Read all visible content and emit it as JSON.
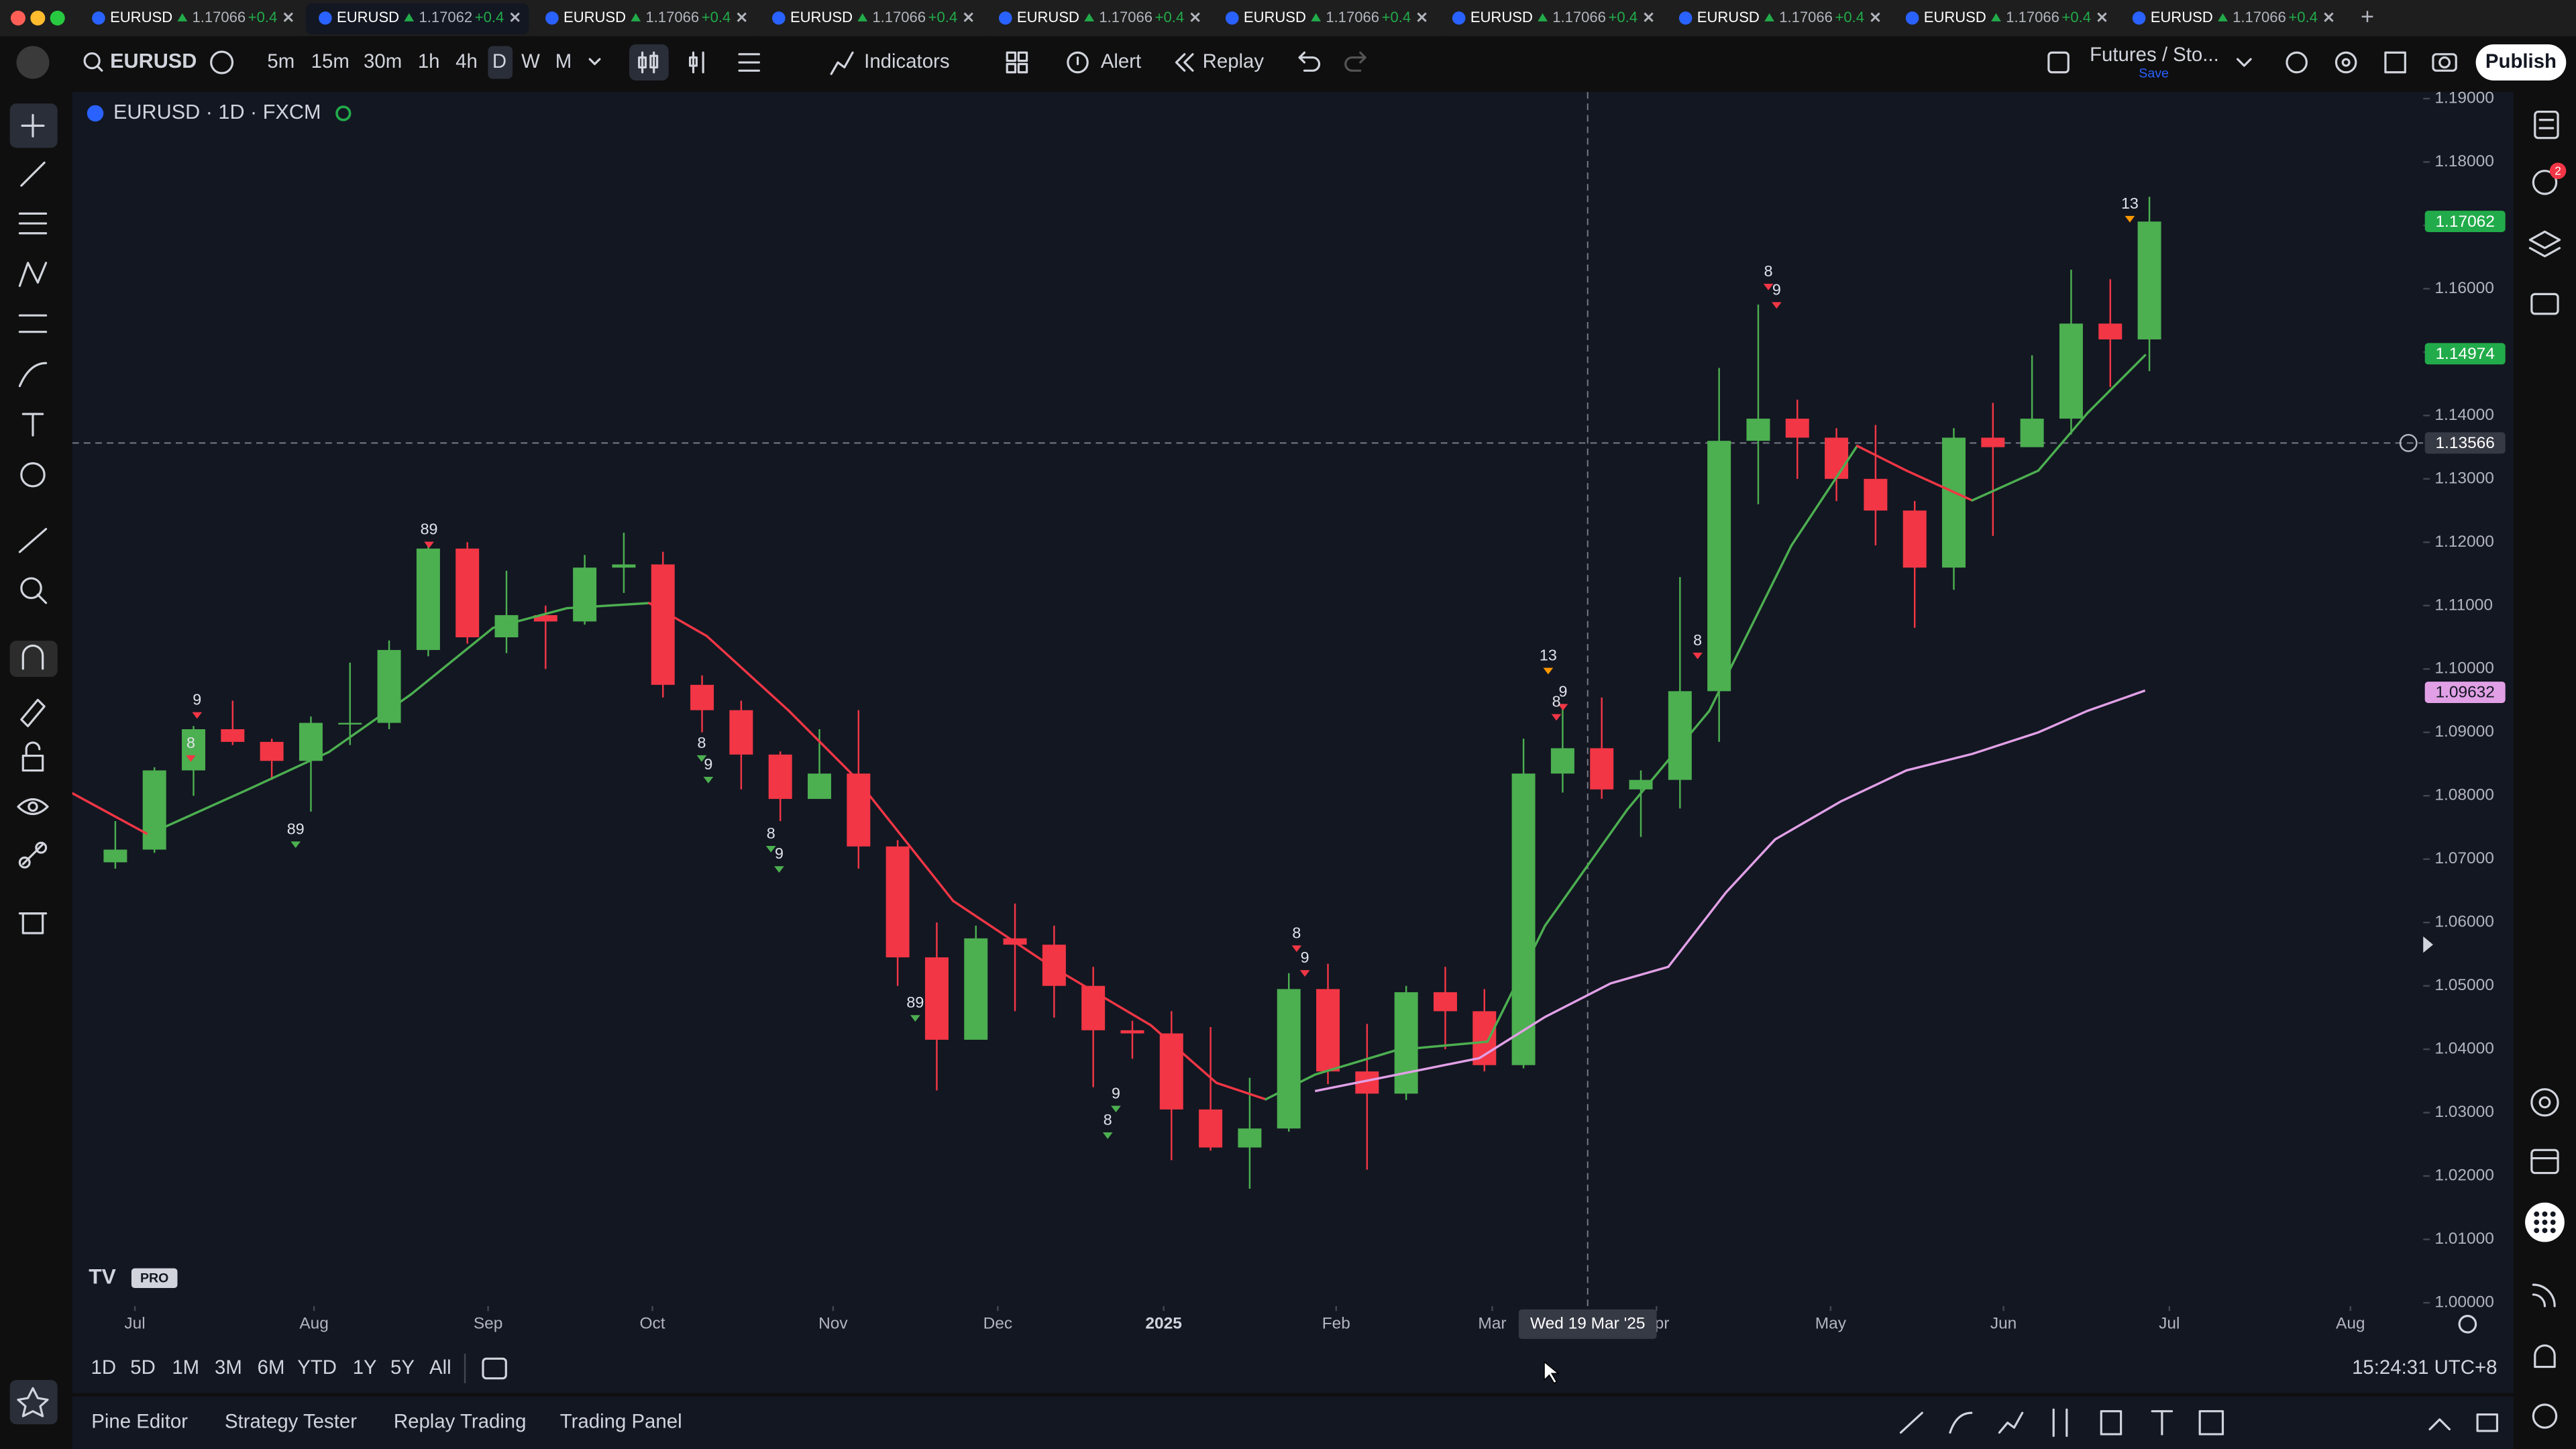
{
  "chart_data": {
    "type": "candlestick",
    "legend": "EURUSD · 1D · FXCM",
    "x": [
      0,
      1,
      2,
      3,
      4,
      5,
      6,
      7,
      8,
      9,
      10,
      11,
      12,
      13,
      14,
      15,
      16,
      17,
      18,
      19,
      20,
      21,
      22,
      23,
      24,
      25,
      26,
      27,
      28,
      29,
      30,
      31,
      32,
      33,
      34,
      35,
      36,
      37,
      38,
      39,
      40,
      41,
      42,
      43,
      44,
      45,
      46,
      47,
      48,
      49,
      50,
      51,
      52
    ],
    "open": [
      1.0695,
      1.0715,
      1.084,
      1.0905,
      1.0885,
      1.0855,
      1.0915,
      1.0915,
      1.103,
      1.119,
      1.105,
      1.1085,
      1.1075,
      1.116,
      1.1165,
      1.0975,
      1.0935,
      1.0865,
      1.0795,
      1.0835,
      1.072,
      1.0545,
      1.0415,
      1.0575,
      1.0565,
      1.05,
      1.043,
      1.0425,
      1.0305,
      1.0245,
      1.0275,
      1.0495,
      1.0365,
      1.033,
      1.049,
      1.046,
      1.0375,
      1.0835,
      1.0875,
      1.081,
      1.0825,
      1.0965,
      1.136,
      1.1395,
      1.1365,
      1.13,
      1.125,
      1.116,
      1.1365,
      1.135,
      1.1395,
      1.1545,
      1.152
    ],
    "high": [
      1.076,
      1.0845,
      1.091,
      1.095,
      1.089,
      1.0925,
      1.101,
      1.1045,
      1.12,
      1.12,
      1.1155,
      1.11,
      1.118,
      1.1215,
      1.1185,
      1.099,
      1.095,
      1.087,
      1.0905,
      1.0935,
      1.073,
      1.06,
      1.0595,
      1.063,
      1.0595,
      1.053,
      1.0445,
      1.046,
      1.0435,
      1.0355,
      1.052,
      1.0535,
      1.044,
      1.05,
      1.053,
      1.0495,
      1.089,
      1.0945,
      1.0955,
      1.084,
      1.1145,
      1.1475,
      1.1575,
      1.1425,
      1.138,
      1.1385,
      1.1265,
      1.138,
      1.142,
      1.1495,
      1.163,
      1.1615,
      1.1745
    ],
    "low": [
      1.0685,
      1.071,
      1.08,
      1.088,
      1.0825,
      1.0775,
      1.088,
      1.0905,
      1.102,
      1.104,
      1.1025,
      1.1,
      1.107,
      1.112,
      1.0955,
      1.09,
      1.081,
      1.076,
      1.0795,
      1.0685,
      1.05,
      1.0335,
      1.0425,
      1.046,
      1.045,
      1.034,
      1.0385,
      1.0225,
      1.024,
      1.018,
      1.027,
      1.0345,
      1.021,
      1.032,
      1.04,
      1.0365,
      1.037,
      1.0805,
      1.0795,
      1.0735,
      1.078,
      1.0885,
      1.126,
      1.13,
      1.1265,
      1.1195,
      1.1065,
      1.1125,
      1.121,
      1.135,
      1.137,
      1.1445,
      1.147
    ],
    "close": [
      1.0715,
      1.084,
      1.0905,
      1.0885,
      1.0855,
      1.0915,
      1.0915,
      1.103,
      1.119,
      1.105,
      1.1085,
      1.1075,
      1.116,
      1.1165,
      1.0975,
      1.0935,
      1.0865,
      1.0795,
      1.0835,
      1.072,
      1.0545,
      1.0415,
      1.0575,
      1.0565,
      1.05,
      1.043,
      1.0425,
      1.0305,
      1.0245,
      1.0275,
      1.0495,
      1.0365,
      1.033,
      1.049,
      1.046,
      1.0375,
      1.0835,
      1.0875,
      1.081,
      1.0825,
      1.0965,
      1.136,
      1.1395,
      1.1365,
      1.13,
      1.125,
      1.116,
      1.1365,
      1.135,
      1.1395,
      1.1545,
      1.152,
      1.1706
    ],
    "up_color": "#4caf50",
    "down_color": "#f23645",
    "series": [
      {
        "x": [
          -1.1,
          0.84,
          3.36,
          5.46,
          7.56,
          9.66,
          11.55,
          13.65,
          15.12,
          17.22,
          18.9,
          21.42,
          23.95,
          26.47,
          28.15,
          29.41,
          30.67,
          32.77,
          35.08,
          36.55,
          38.65,
          40.75,
          42.85,
          44.53,
          45.79,
          47.47,
          49.16,
          50.42,
          51.89
        ],
        "values": [
          1.0804,
          1.0739,
          1.0809,
          1.0869,
          1.096,
          1.1065,
          1.1096,
          1.1104,
          1.1052,
          1.0934,
          1.083,
          1.0634,
          1.053,
          1.0438,
          1.0347,
          1.0321,
          1.036,
          1.0399,
          1.0412,
          1.0595,
          1.0778,
          1.0934,
          1.1195,
          1.1352,
          1.1313,
          1.1266,
          1.1313,
          1.1404,
          1.1495
        ],
        "up_color": "#4caf50",
        "down_color": "#f23645"
      },
      {
        "x": [
          30.67,
          32.77,
          34.87,
          36.55,
          38.23,
          39.7,
          41.17,
          42.43,
          44.11,
          45.79,
          47.47,
          49.16,
          50.42,
          51.89
        ],
        "values": [
          1.0334,
          1.036,
          1.0386,
          1.0451,
          1.0504,
          1.053,
          1.0647,
          1.0731,
          1.0791,
          1.084,
          1.0866,
          1.09,
          1.0934,
          1.0966
        ],
        "color": "#e1a0e6"
      }
    ],
    "annotations": [
      {
        "text": "9",
        "x": 2.09,
        "y": 1.095,
        "color": "#f23645"
      },
      {
        "text": "8",
        "x": 1.93,
        "y": 1.0882,
        "color": "#f23645"
      },
      {
        "text": "89",
        "x": 4.61,
        "y": 1.0746,
        "color": "#4caf50"
      },
      {
        "text": "89",
        "x": 8.02,
        "y": 1.1219,
        "color": "#f23645"
      },
      {
        "text": "8",
        "x": 14.99,
        "y": 1.0882,
        "color": "#4caf50"
      },
      {
        "text": "9",
        "x": 15.16,
        "y": 1.0848,
        "color": "#4caf50"
      },
      {
        "text": "8",
        "x": 16.76,
        "y": 1.0739,
        "color": "#4caf50"
      },
      {
        "text": "9",
        "x": 16.97,
        "y": 1.0707,
        "color": "#4caf50"
      },
      {
        "text": "89",
        "x": 20.45,
        "y": 1.0472,
        "color": "#4caf50"
      },
      {
        "text": "9",
        "x": 25.58,
        "y": 1.0329,
        "color": "#4caf50"
      },
      {
        "text": "8",
        "x": 25.37,
        "y": 1.0287,
        "color": "#4caf50"
      },
      {
        "text": "8",
        "x": 30.2,
        "y": 1.0582,
        "color": "#f23645"
      },
      {
        "text": "9",
        "x": 30.41,
        "y": 1.0543,
        "color": "#f23645"
      },
      {
        "text": "13",
        "x": 36.63,
        "y": 1.102,
        "color": "#ff9800"
      },
      {
        "text": "9",
        "x": 37.01,
        "y": 1.0963,
        "color": "#f23645"
      },
      {
        "text": "8",
        "x": 36.84,
        "y": 1.0947,
        "color": "#f23645"
      },
      {
        "text": "8",
        "x": 40.45,
        "y": 1.1044,
        "color": "#f23645"
      },
      {
        "text": "8",
        "x": 42.26,
        "y": 1.1626,
        "color": "#f23645"
      },
      {
        "text": "9",
        "x": 42.47,
        "y": 1.1597,
        "color": "#f23645"
      },
      {
        "text": "13",
        "x": 51.5,
        "y": 1.1733,
        "color": "#ff9800"
      }
    ],
    "xlim": [
      -1.1,
      59.0
    ],
    "xticks": [
      {
        "value": 0.5,
        "label": "Jul"
      },
      {
        "value": 5.08,
        "label": "Aug"
      },
      {
        "value": 9.53,
        "label": "Sep"
      },
      {
        "value": 13.73,
        "label": "Oct"
      },
      {
        "value": 18.35,
        "label": "Nov"
      },
      {
        "value": 22.56,
        "label": "Dec"
      },
      {
        "value": 26.8,
        "label": "2025"
      },
      {
        "value": 31.21,
        "label": "Feb"
      },
      {
        "value": 35.2,
        "label": "Mar"
      },
      {
        "value": 39.4,
        "label": "Apr"
      },
      {
        "value": 43.85,
        "label": "May"
      },
      {
        "value": 48.27,
        "label": "Jun"
      },
      {
        "value": 52.51,
        "label": "Jul"
      },
      {
        "value": 57.14,
        "label": "Aug"
      }
    ],
    "ylim": [
      0.99948,
      1.19104
    ],
    "yticks": [
      {
        "value": 1.19,
        "label": "1.19000"
      },
      {
        "value": 1.18,
        "label": "1.18000"
      },
      {
        "value": 1.17,
        "label": "1.17000"
      },
      {
        "value": 1.16,
        "label": "1.16000"
      },
      {
        "value": 1.15,
        "label": "1.15000"
      },
      {
        "value": 1.14,
        "label": "1.14000"
      },
      {
        "value": 1.13,
        "label": "1.13000"
      },
      {
        "value": 1.12,
        "label": "1.12000"
      },
      {
        "value": 1.11,
        "label": "1.11000"
      },
      {
        "value": 1.1,
        "label": "1.10000"
      },
      {
        "value": 1.09,
        "label": "1.09000"
      },
      {
        "value": 1.08,
        "label": "1.08000"
      },
      {
        "value": 1.07,
        "label": "1.07000"
      },
      {
        "value": 1.06,
        "label": "1.06000"
      },
      {
        "value": 1.05,
        "label": "1.05000"
      },
      {
        "value": 1.04,
        "label": "1.04000"
      },
      {
        "value": 1.03,
        "label": "1.03000"
      },
      {
        "value": 1.02,
        "label": "1.02000"
      },
      {
        "value": 1.01,
        "label": "1.01000"
      },
      {
        "value": 1.0,
        "label": "1.00000"
      }
    ],
    "price_labels": [
      {
        "value": 1.17062,
        "color": "#22ab4a"
      },
      {
        "value": 1.14974,
        "color": "#22ab4a"
      },
      {
        "value": 1.09632,
        "color": "#e1a0e6"
      }
    ],
    "crosshair": {
      "x": 37.64,
      "price": 1.13566,
      "date_label": "Wed 19 Mar '25"
    }
  },
  "ui": {
    "tabs": [
      {
        "symbol": "EURUSD",
        "price": "1.17066",
        "change": "+0.4"
      },
      {
        "symbol": "EURUSD",
        "price": "1.17062",
        "change": "+0.4"
      },
      {
        "symbol": "EURUSD",
        "price": "1.17066",
        "change": "+0.4"
      },
      {
        "symbol": "EURUSD",
        "price": "1.17066",
        "change": "+0.4"
      },
      {
        "symbol": "EURUSD",
        "price": "1.17066",
        "change": "+0.4"
      },
      {
        "symbol": "EURUSD",
        "price": "1.17066",
        "change": "+0.4"
      },
      {
        "symbol": "EURUSD",
        "price": "1.17066",
        "change": "+0.4"
      },
      {
        "symbol": "EURUSD",
        "price": "1.17066",
        "change": "+0.4"
      },
      {
        "symbol": "EURUSD",
        "price": "1.17066",
        "change": "+0.4"
      },
      {
        "symbol": "EURUSD",
        "price": "1.17066",
        "change": "+0.4"
      }
    ],
    "symbol": "EURUSD",
    "intervals": [
      "5m",
      "15m",
      "30m",
      "1h",
      "4h",
      "D",
      "W",
      "M"
    ],
    "indicators": "Indicators",
    "alert": "Alert",
    "replay": "Replay",
    "layout": "Futures / Sto...",
    "save": "Save",
    "publish": "Publish",
    "logo": "PRO",
    "ranges": [
      "1D",
      "5D",
      "1M",
      "3M",
      "6M",
      "YTD",
      "1Y",
      "5Y",
      "All"
    ],
    "clock": "15:24:31 UTC+8",
    "panels": [
      "Pine Editor",
      "Strategy Tester",
      "Replay Trading",
      "Trading Panel"
    ]
  }
}
